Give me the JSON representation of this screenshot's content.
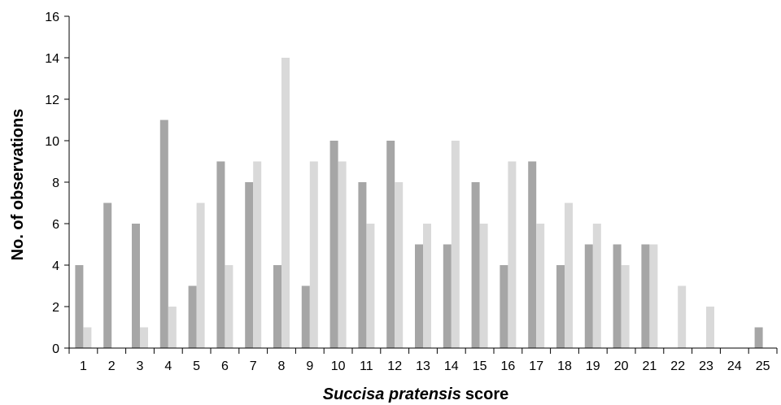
{
  "chart_data": {
    "type": "bar",
    "xlabel_italic": "Succisa pratensis",
    "xlabel_rest": "score",
    "ylabel": "No. of observations",
    "ylim": [
      0,
      16
    ],
    "yticks": [
      0,
      2,
      4,
      6,
      8,
      10,
      12,
      14,
      16
    ],
    "grid": false,
    "categories": [
      "1",
      "2",
      "3",
      "4",
      "5",
      "6",
      "7",
      "8",
      "9",
      "10",
      "11",
      "12",
      "13",
      "14",
      "15",
      "16",
      "17",
      "18",
      "19",
      "20",
      "21",
      "22",
      "23",
      "24",
      "25"
    ],
    "series": [
      {
        "color": "#a6a6a6",
        "values": [
          4,
          7,
          6,
          11,
          3,
          9,
          8,
          4,
          3,
          10,
          8,
          10,
          5,
          5,
          8,
          4,
          9,
          4,
          5,
          5,
          5,
          0,
          0,
          0,
          1
        ]
      },
      {
        "color": "#d9d9d9",
        "values": [
          1,
          0,
          1,
          2,
          7,
          4,
          9,
          14,
          9,
          9,
          6,
          8,
          6,
          10,
          6,
          9,
          6,
          7,
          6,
          4,
          5,
          3,
          2,
          0,
          0
        ]
      }
    ]
  }
}
